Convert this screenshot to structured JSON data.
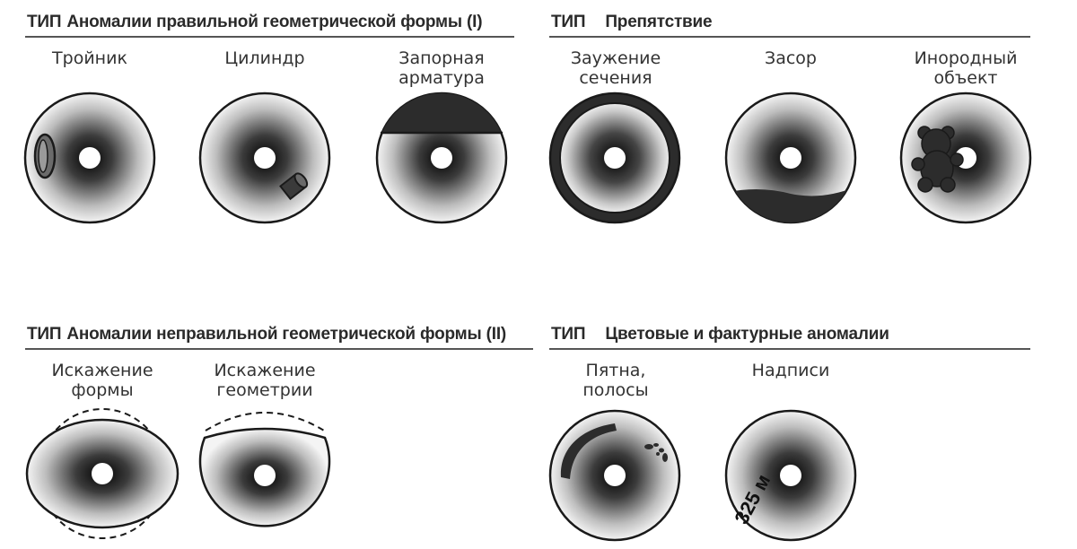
{
  "sections": [
    {
      "type_word": "ТИП",
      "title": "Аномалии правильной геометрической формы (I)"
    },
    {
      "type_word": "ТИП",
      "title": "Препятствие"
    },
    {
      "type_word": "ТИП",
      "title": "Аномалии неправильной геометрической формы (II)"
    },
    {
      "type_word": "ТИП",
      "title": "Цветовые и фактурные аномалии"
    }
  ],
  "items": [
    {
      "line1": "Тройник",
      "line2": ""
    },
    {
      "line1": "Цилиндр",
      "line2": ""
    },
    {
      "line1": "Запорная",
      "line2": "арматура"
    },
    {
      "line1": "Заужение",
      "line2": "сечения"
    },
    {
      "line1": "Засор",
      "line2": ""
    },
    {
      "line1": "Инородный",
      "line2": "объект"
    },
    {
      "line1": "Искажение",
      "line2": "формы"
    },
    {
      "line1": "Искажение",
      "line2": "геометрии"
    },
    {
      "line1": "Пятна,",
      "line2": "полосы"
    },
    {
      "line1": "Надписи",
      "line2": ""
    }
  ],
  "inscription_text": "325 м",
  "colors": {
    "dark": "#2c2c2c",
    "text": "#2a2a2a",
    "gradient_center": "#000000",
    "gradient_edge": "#f2f2f2"
  }
}
